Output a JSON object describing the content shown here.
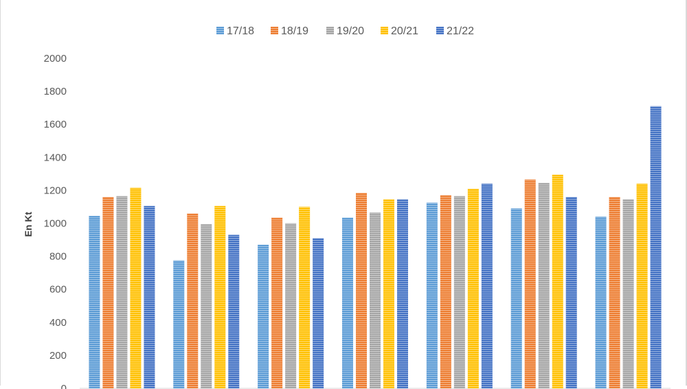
{
  "chart_data": {
    "type": "bar",
    "ylabel": "En Kt",
    "ylim": [
      0,
      2000
    ],
    "yticks": [
      0,
      200,
      400,
      600,
      800,
      1000,
      1200,
      1400,
      1600,
      1800,
      2000
    ],
    "grid": false,
    "legend_position": "top",
    "categories": [
      "",
      "",
      "",
      "",
      "",
      "",
      ""
    ],
    "series": [
      {
        "name": "17/18",
        "color": "#5B9BD5",
        "values": [
          1045,
          775,
          870,
          1035,
          1125,
          1090,
          1040
        ]
      },
      {
        "name": "18/19",
        "color": "#ED7D31",
        "values": [
          1160,
          1060,
          1035,
          1185,
          1170,
          1265,
          1160
        ]
      },
      {
        "name": "19/20",
        "color": "#A5A5A5",
        "values": [
          1165,
          995,
          1000,
          1065,
          1165,
          1245,
          1145
        ]
      },
      {
        "name": "20/21",
        "color": "#FFC000",
        "values": [
          1215,
          1105,
          1100,
          1145,
          1210,
          1295,
          1240
        ]
      },
      {
        "name": "21/22",
        "color": "#4472C4",
        "values": [
          1105,
          930,
          910,
          1145,
          1240,
          1160,
          1710
        ]
      }
    ]
  }
}
